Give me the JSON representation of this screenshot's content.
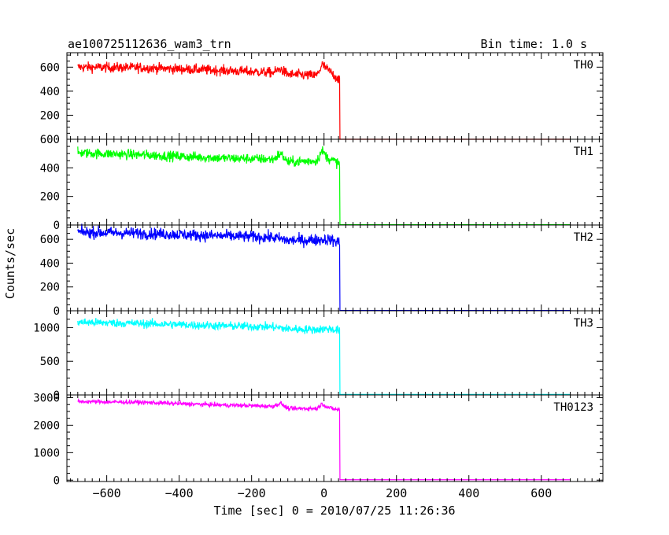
{
  "chart_data": {
    "type": "line",
    "title": "ae100725112636_wam3_trn",
    "bin_time_label": "Bin time: 1.0 s",
    "ylabel": "Counts/sec",
    "xlabel": "Time [sec] 0 = 2010/07/25 11:26:36",
    "xlim": [
      -710,
      770
    ],
    "x_ticks": [
      -600,
      -400,
      -200,
      0,
      200,
      400,
      600
    ],
    "x_tick_labels": [
      "−600",
      "−400",
      "−200",
      "0",
      "200",
      "400",
      "600"
    ],
    "x_data_range": [
      -680,
      680
    ],
    "drop_time": 43,
    "grid": false,
    "panels": [
      {
        "name": "TH0",
        "color": "#ff0000",
        "ylim": [
          0,
          720
        ],
        "y_ticks": [
          200,
          400,
          600
        ],
        "y_tick_labels": [
          "200",
          "400",
          "600"
        ],
        "trend": [
          [
            -680,
            600
          ],
          [
            -500,
            595
          ],
          [
            -300,
            575
          ],
          [
            -140,
            555
          ],
          [
            -120,
            585
          ],
          [
            -100,
            540
          ],
          [
            -20,
            530
          ],
          [
            -5,
            620
          ],
          [
            10,
            580
          ],
          [
            30,
            525
          ],
          [
            40,
            500
          ]
        ],
        "noise": 30,
        "after_level": 0
      },
      {
        "name": "TH1",
        "color": "#00ff00",
        "ylim": [
          0,
          600
        ],
        "y_ticks": [
          0,
          200,
          400,
          600
        ],
        "y_tick_labels": [
          "0",
          "200",
          "400",
          "600"
        ],
        "trend": [
          [
            -680,
            505
          ],
          [
            -500,
            490
          ],
          [
            -300,
            470
          ],
          [
            -140,
            460
          ],
          [
            -120,
            500
          ],
          [
            -100,
            440
          ],
          [
            -20,
            450
          ],
          [
            -5,
            520
          ],
          [
            10,
            470
          ],
          [
            30,
            445
          ],
          [
            40,
            430
          ]
        ],
        "noise": 25,
        "after_level": 2
      },
      {
        "name": "TH2",
        "color": "#0000ff",
        "ylim": [
          0,
          720
        ],
        "y_ticks": [
          0,
          200,
          400,
          600
        ],
        "y_tick_labels": [
          "0",
          "200",
          "400",
          "600"
        ],
        "trend": [
          [
            -680,
            660
          ],
          [
            -500,
            650
          ],
          [
            -300,
            630
          ],
          [
            -140,
            615
          ],
          [
            -100,
            590
          ],
          [
            -20,
            595
          ],
          [
            10,
            600
          ],
          [
            40,
            575
          ]
        ],
        "noise": 35,
        "after_level": 3
      },
      {
        "name": "TH3",
        "color": "#00ffff",
        "ylim": [
          0,
          1250
        ],
        "y_ticks": [
          0,
          500,
          1000
        ],
        "y_tick_labels": [
          "0",
          "500",
          "1000"
        ],
        "trend": [
          [
            -680,
            1080
          ],
          [
            -500,
            1060
          ],
          [
            -300,
            1030
          ],
          [
            -140,
            1010
          ],
          [
            -100,
            980
          ],
          [
            -20,
            970
          ],
          [
            10,
            985
          ],
          [
            40,
            960
          ]
        ],
        "noise": 45,
        "after_level": 8
      },
      {
        "name": "TH0123",
        "color": "#ff00ff",
        "ylim": [
          -50,
          3100
        ],
        "y_ticks": [
          0,
          1000,
          2000,
          3000
        ],
        "y_tick_labels": [
          "0",
          "1000",
          "2000",
          "3000"
        ],
        "trend": [
          [
            -680,
            2860
          ],
          [
            -500,
            2830
          ],
          [
            -300,
            2740
          ],
          [
            -140,
            2690
          ],
          [
            -120,
            2800
          ],
          [
            -100,
            2600
          ],
          [
            -20,
            2610
          ],
          [
            -5,
            2780
          ],
          [
            10,
            2650
          ],
          [
            30,
            2580
          ],
          [
            40,
            2560
          ]
        ],
        "noise": 55,
        "after_level": 15
      }
    ]
  }
}
